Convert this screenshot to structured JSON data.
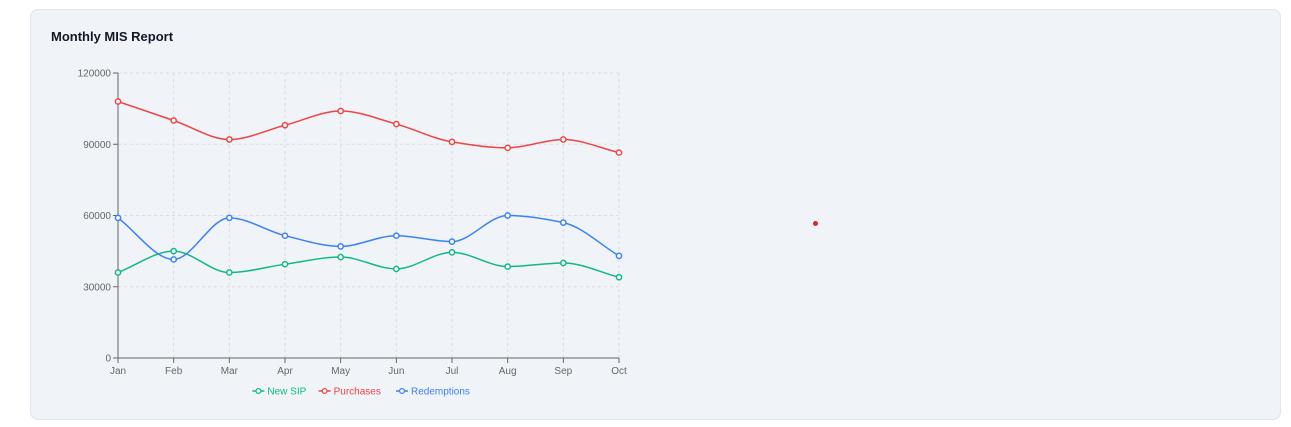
{
  "card": {
    "title": "Monthly MIS Report"
  },
  "colors": {
    "new_sip": "#10b981",
    "purchases": "#ef4444",
    "redemptions": "#3b82f6",
    "marker": "#dc2626"
  },
  "chart_data": {
    "type": "line",
    "x": [
      "Jan",
      "Feb",
      "Mar",
      "Apr",
      "May",
      "Jun",
      "Jul",
      "Aug",
      "Sep",
      "Oct"
    ],
    "ylim": [
      0,
      120000
    ],
    "yticks": [
      0,
      30000,
      60000,
      90000,
      120000
    ],
    "grid": true,
    "legend": "bottom",
    "series": [
      {
        "name": "New SIP",
        "color": "#10b981",
        "values": [
          36000,
          45000,
          36000,
          39500,
          42500,
          37500,
          44500,
          38500,
          40000,
          34000
        ]
      },
      {
        "name": "Purchases",
        "color": "#ef4444",
        "values": [
          108000,
          100000,
          92000,
          98000,
          104000,
          98500,
          91000,
          88500,
          92000,
          86500
        ]
      },
      {
        "name": "Redemptions",
        "color": "#3b82f6",
        "values": [
          59000,
          41500,
          59000,
          51500,
          47000,
          51500,
          49000,
          60000,
          57000,
          43000
        ]
      }
    ]
  }
}
